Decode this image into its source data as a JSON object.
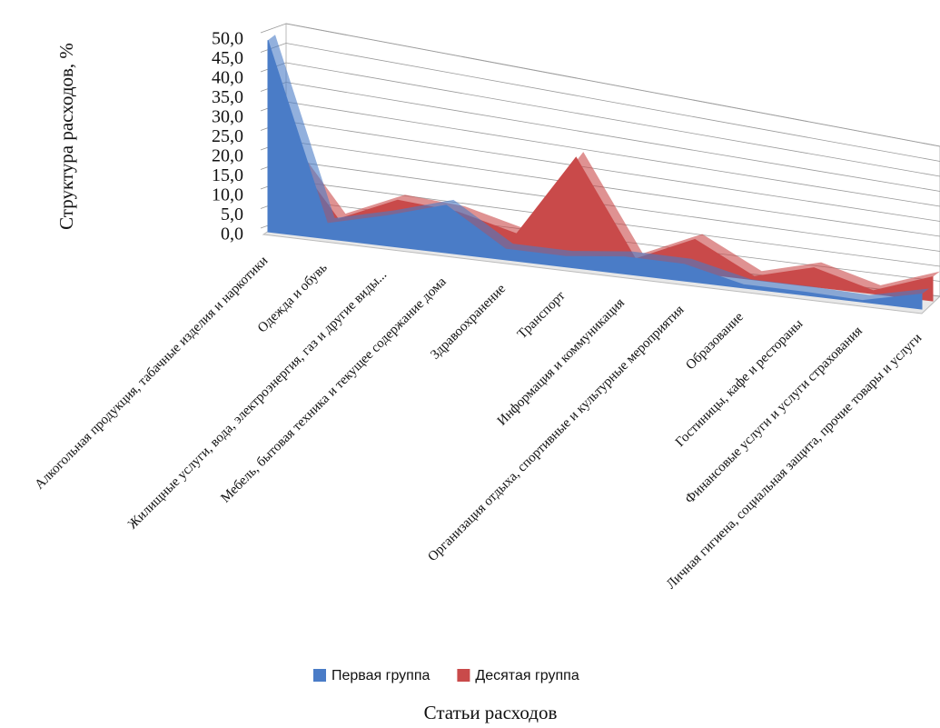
{
  "chart_data": {
    "type": "area3d",
    "x_label": "Статьи расходов",
    "y_label": "Структура расходов, %",
    "categories": [
      "Алкогольная продукция, табачные изделия и наркотики",
      "Одежда и обувь",
      "Жилищные услуги, вода, электроэнергия, газ и другие виды...",
      "Мебель, бытовая техника и текущее содержание дома",
      "Здравоохранение",
      "Транспорт",
      "Информация и коммуникация",
      "Организация отдыха, спортивные и культурные мероприятия",
      "Образование",
      "Гостиницы, кафе и рестораны",
      "Финансовые услуги и услуги страхования",
      "Личная гигиена, социальная защита, прочие товары и услуги"
    ],
    "series": [
      {
        "name": "Первая группа",
        "color": "#4a7cc7",
        "values": [
          49,
          4,
          8,
          13,
          3,
          3,
          5,
          5,
          1,
          1,
          0.5,
          5
        ]
      },
      {
        "name": "Десятая группа",
        "color": "#c94a4a",
        "values": [
          22,
          3,
          10,
          9,
          5,
          29,
          2,
          10,
          1,
          6,
          1,
          8
        ]
      }
    ],
    "ylim": [
      0,
      50
    ],
    "yticks": [
      {
        "value": 0,
        "label": "0,0"
      },
      {
        "value": 5,
        "label": "5,0"
      },
      {
        "value": 10,
        "label": "10,0"
      },
      {
        "value": 15,
        "label": "15,0"
      },
      {
        "value": 20,
        "label": "20,0"
      },
      {
        "value": 25,
        "label": "25,0"
      },
      {
        "value": 30,
        "label": "30,0"
      },
      {
        "value": 35,
        "label": "35,0"
      },
      {
        "value": 40,
        "label": "40,0"
      },
      {
        "value": 45,
        "label": "45,0"
      },
      {
        "value": 50,
        "label": "50,0"
      }
    ],
    "grid": true
  }
}
